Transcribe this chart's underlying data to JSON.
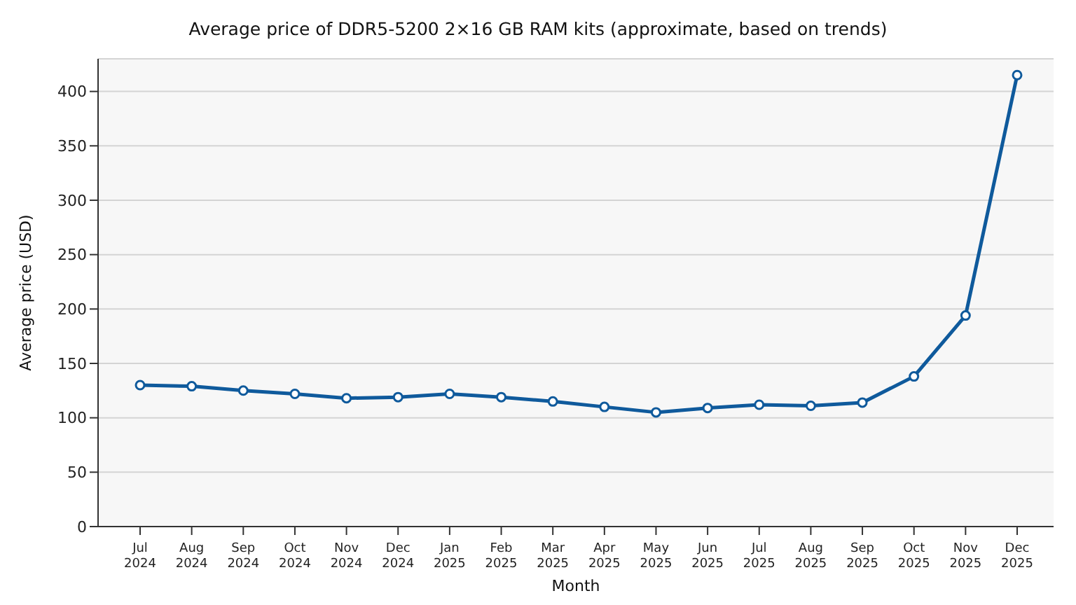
{
  "chart_data": {
    "type": "line",
    "title": "Average price of DDR5-5200 2×16 GB RAM kits (approximate, based on trends)",
    "xlabel": "Month",
    "ylabel": "Average price (USD)",
    "categories": [
      "Jul\n2024",
      "Aug\n2024",
      "Sep\n2024",
      "Oct\n2024",
      "Nov\n2024",
      "Dec\n2024",
      "Jan\n2025",
      "Feb\n2025",
      "Mar\n2025",
      "Apr\n2025",
      "May\n2025",
      "Jun\n2025",
      "Jul\n2025",
      "Aug\n2025",
      "Sep\n2025",
      "Oct\n2025",
      "Nov\n2025",
      "Dec\n2025"
    ],
    "series": [
      {
        "color": "#0f5a9c",
        "values": [
          130,
          129,
          125,
          122,
          118,
          119,
          122,
          119,
          115,
          110,
          105,
          109,
          112,
          111,
          114,
          138,
          194,
          415
        ]
      }
    ],
    "ylim": [
      0,
      430
    ],
    "yticks": [
      0,
      50,
      100,
      150,
      200,
      250,
      300,
      350,
      400
    ],
    "grid": "y",
    "marker": "circle",
    "line_style": "solid"
  }
}
